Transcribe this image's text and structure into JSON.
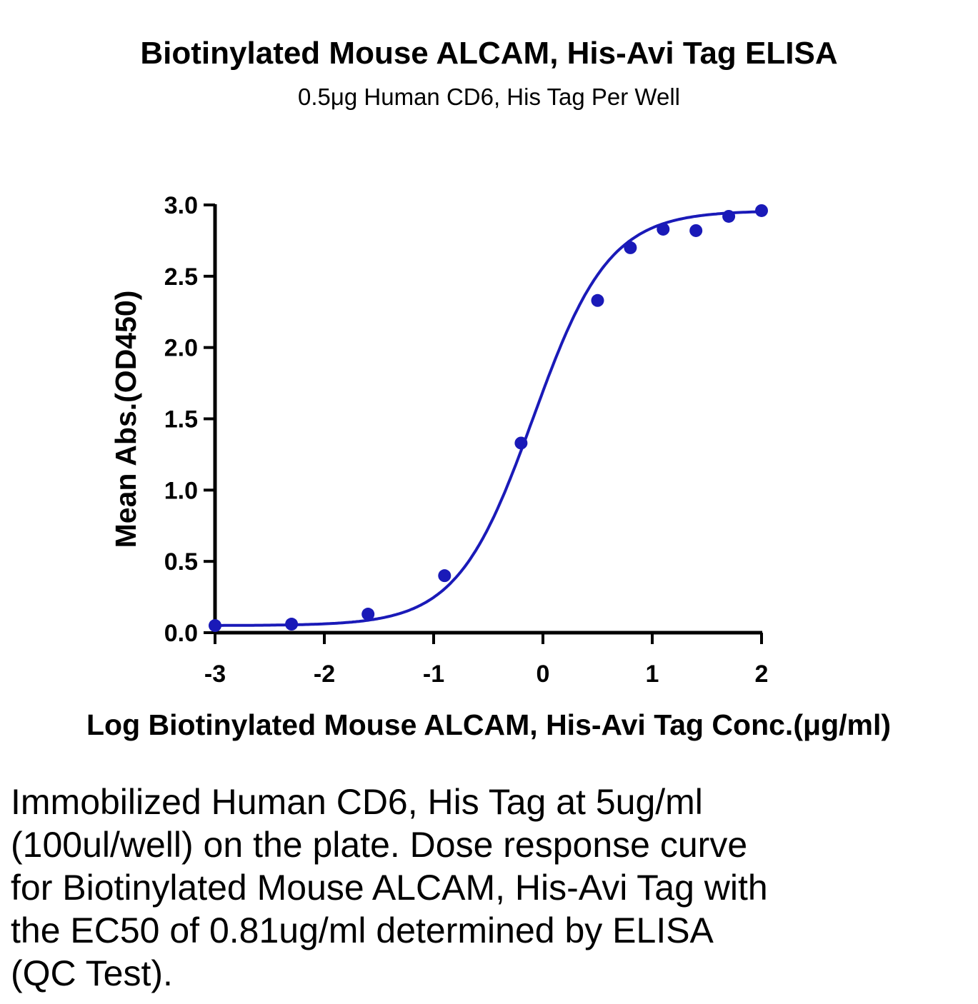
{
  "chart_data": {
    "type": "scatter",
    "title": "Biotinylated Mouse ALCAM, His-Avi Tag ELISA",
    "subtitle": "0.5μg Human CD6, His Tag Per Well",
    "xlabel": "Log Biotinylated Mouse ALCAM, His-Avi Tag Conc.(μg/ml)",
    "ylabel": "Mean Abs.(OD450)",
    "xlim": [
      -3,
      2
    ],
    "ylim": [
      0,
      3.0
    ],
    "x_ticks": [
      -3,
      -2,
      -1,
      0,
      1,
      2
    ],
    "x_tick_labels": [
      "-3",
      "-2",
      "-1",
      "0",
      "1",
      "2"
    ],
    "y_ticks": [
      0,
      0.5,
      1.0,
      1.5,
      2.0,
      2.5,
      3.0
    ],
    "y_tick_labels": [
      "0.0",
      "0.5",
      "1.0",
      "1.5",
      "2.0",
      "2.5",
      "3.0"
    ],
    "grid": false,
    "series": [
      {
        "color": "#1a1ab8",
        "points": [
          {
            "x": -3.0,
            "y": 0.05
          },
          {
            "x": -2.3,
            "y": 0.06
          },
          {
            "x": -1.6,
            "y": 0.13
          },
          {
            "x": -0.9,
            "y": 0.4
          },
          {
            "x": -0.2,
            "y": 1.33
          },
          {
            "x": 0.5,
            "y": 2.33
          },
          {
            "x": 0.8,
            "y": 2.7
          },
          {
            "x": 1.1,
            "y": 2.83
          },
          {
            "x": 1.4,
            "y": 2.82
          },
          {
            "x": 1.7,
            "y": 2.92
          },
          {
            "x": 2.0,
            "y": 2.96
          }
        ],
        "fit": {
          "model": "4PL",
          "bottom": 0.05,
          "top": 2.96,
          "logEC50": -0.09,
          "hill": 1.25
        }
      }
    ]
  },
  "caption": "Immobilized Human CD6, His Tag at 5ug/ml (100ul/well) on the plate. Dose response curve for Biotinylated Mouse ALCAM, His-Avi Tag with the EC50 of 0.81ug/ml determined by ELISA (QC Test)."
}
